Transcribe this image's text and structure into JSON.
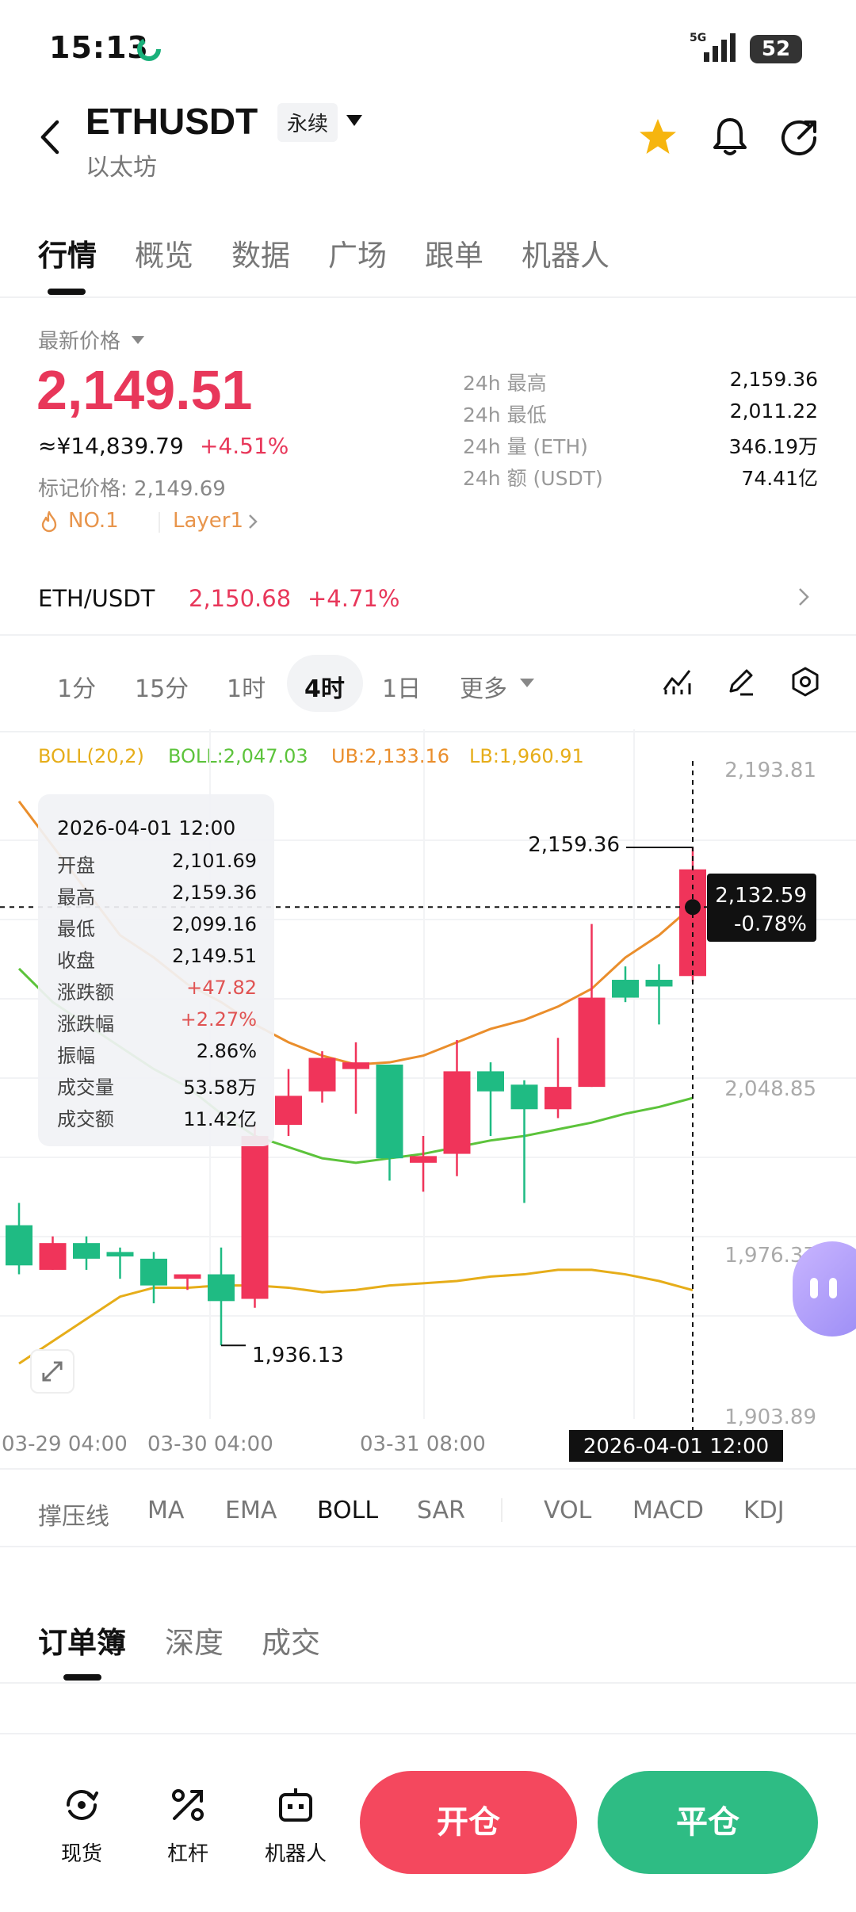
{
  "status": {
    "time": "15:13",
    "battery": "52",
    "net": "5G"
  },
  "header": {
    "pair": "ETHUSDT",
    "badge": "永续",
    "sub": "以太坊"
  },
  "tabs": [
    "行情",
    "概览",
    "数据",
    "广场",
    "跟单",
    "机器人"
  ],
  "price": {
    "latest_label": "最新价格",
    "last": "2,149.51",
    "cny": "≈¥14,839.79",
    "pct": "+4.51%",
    "mark": "标记价格: 2,149.69",
    "rank": "NO.1",
    "tag": "Layer1"
  },
  "stats": [
    {
      "label": "24h  最高",
      "value": "2,159.36"
    },
    {
      "label": "24h  最低",
      "value": "2,011.22"
    },
    {
      "label": "24h  量 (ETH)",
      "value": "346.19万"
    },
    {
      "label": "24h  额 (USDT)",
      "value": "74.41亿"
    }
  ],
  "spot": {
    "label": "ETH/USDT",
    "price": "2,150.68",
    "pct": "+4.71%"
  },
  "timeframes": [
    "1分",
    "15分",
    "1时",
    "4时",
    "1日",
    "更多"
  ],
  "boll": {
    "name": "BOLL(20,2)",
    "mid": "BOLL:2,047.03",
    "ub": "UB:2,133.16",
    "lb": "LB:1,960.91"
  },
  "tooltip": {
    "date": "2026-04-01 12:00",
    "rows": [
      {
        "label": "开盘",
        "value": "2,101.69"
      },
      {
        "label": "最高",
        "value": "2,159.36"
      },
      {
        "label": "最低",
        "value": "2,099.16"
      },
      {
        "label": "收盘",
        "value": "2,149.51"
      },
      {
        "label": "涨跌额",
        "value": "+47.82"
      },
      {
        "label": "涨跌幅",
        "value": "+2.27%"
      },
      {
        "label": "振幅",
        "value": "2.86%"
      },
      {
        "label": "成交量",
        "value": "53.58万"
      },
      {
        "label": "成交额",
        "value": "11.42亿"
      }
    ]
  },
  "chart": {
    "y_ticks": [
      "2,193.81",
      "2,048.85",
      "1,976.37",
      "1,903.89"
    ],
    "x_ticks": [
      "03-29 04:00",
      "03-30 04:00",
      "03-31 08:00"
    ],
    "cursor_date": "2026-04-01 12:00",
    "cursor_price": "2,132.59",
    "cursor_pct": "-0.78%",
    "high_label": "2,159.36",
    "low_label": "1,936.13",
    "up_color": "#f0345a",
    "down_color": "#1fbb83"
  },
  "chart_data": {
    "type": "candlestick",
    "ylim": [
      1903.89,
      2193.81
    ],
    "candles": [
      {
        "o": 1990,
        "h": 2000,
        "l": 1968,
        "c": 1972
      },
      {
        "o": 1970,
        "h": 1985,
        "l": 1970,
        "c": 1982
      },
      {
        "o": 1982,
        "h": 1985,
        "l": 1970,
        "c": 1975
      },
      {
        "o": 1978,
        "h": 1980,
        "l": 1966,
        "c": 1976
      },
      {
        "o": 1975,
        "h": 1978,
        "l": 1955,
        "c": 1963
      },
      {
        "o": 1966,
        "h": 1968,
        "l": 1961,
        "c": 1968
      },
      {
        "o": 1968,
        "h": 1980,
        "l": 1936.13,
        "c": 1956
      },
      {
        "o": 1957,
        "h": 2035,
        "l": 1953,
        "c": 2030
      },
      {
        "o": 2035,
        "h": 2060,
        "l": 2030,
        "c": 2048
      },
      {
        "o": 2050,
        "h": 2068,
        "l": 2045,
        "c": 2065
      },
      {
        "o": 2060,
        "h": 2072,
        "l": 2040,
        "c": 2063
      },
      {
        "o": 2062,
        "h": 2062,
        "l": 2010,
        "c": 2020
      },
      {
        "o": 2018,
        "h": 2030,
        "l": 2005,
        "c": 2021
      },
      {
        "o": 2022,
        "h": 2073,
        "l": 2012,
        "c": 2059
      },
      {
        "o": 2059,
        "h": 2063,
        "l": 2030,
        "c": 2050
      },
      {
        "o": 2053,
        "h": 2055,
        "l": 2000,
        "c": 2042
      },
      {
        "o": 2042,
        "h": 2074,
        "l": 2038,
        "c": 2052
      },
      {
        "o": 2052,
        "h": 2125,
        "l": 2052,
        "c": 2092
      },
      {
        "o": 2100,
        "h": 2106,
        "l": 2090,
        "c": 2092
      },
      {
        "o": 2100,
        "h": 2107,
        "l": 2080,
        "c": 2097
      },
      {
        "o": 2101.69,
        "h": 2159.36,
        "l": 2099.16,
        "c": 2149.51
      }
    ],
    "mid": [
      2105,
      2090,
      2080,
      2070,
      2060,
      2052,
      2040,
      2030,
      2025,
      2020,
      2018,
      2020,
      2022,
      2025,
      2028,
      2030,
      2033,
      2036,
      2040,
      2043,
      2047.03
    ],
    "upper": [
      2180,
      2160,
      2140,
      2120,
      2110,
      2098,
      2090,
      2080,
      2072,
      2066,
      2062,
      2063,
      2066,
      2072,
      2078,
      2082,
      2088,
      2096,
      2110,
      2120,
      2133.16
    ],
    "lower": [
      1928,
      1938,
      1948,
      1958,
      1962,
      1962,
      1963,
      1963,
      1962,
      1960,
      1961,
      1963,
      1964,
      1965,
      1967,
      1968,
      1970,
      1970,
      1968,
      1965,
      1960.91
    ]
  },
  "indicators": [
    "撑压线",
    "MA",
    "EMA",
    "BOLL",
    "SAR",
    "VOL",
    "MACD",
    "KDJ"
  ],
  "orderbook_tabs": [
    "订单簿",
    "深度",
    "成交"
  ],
  "bottom_nav": {
    "spot": "现货",
    "margin": "杠杆",
    "bot": "机器人",
    "open": "开仓",
    "close": "平仓"
  }
}
